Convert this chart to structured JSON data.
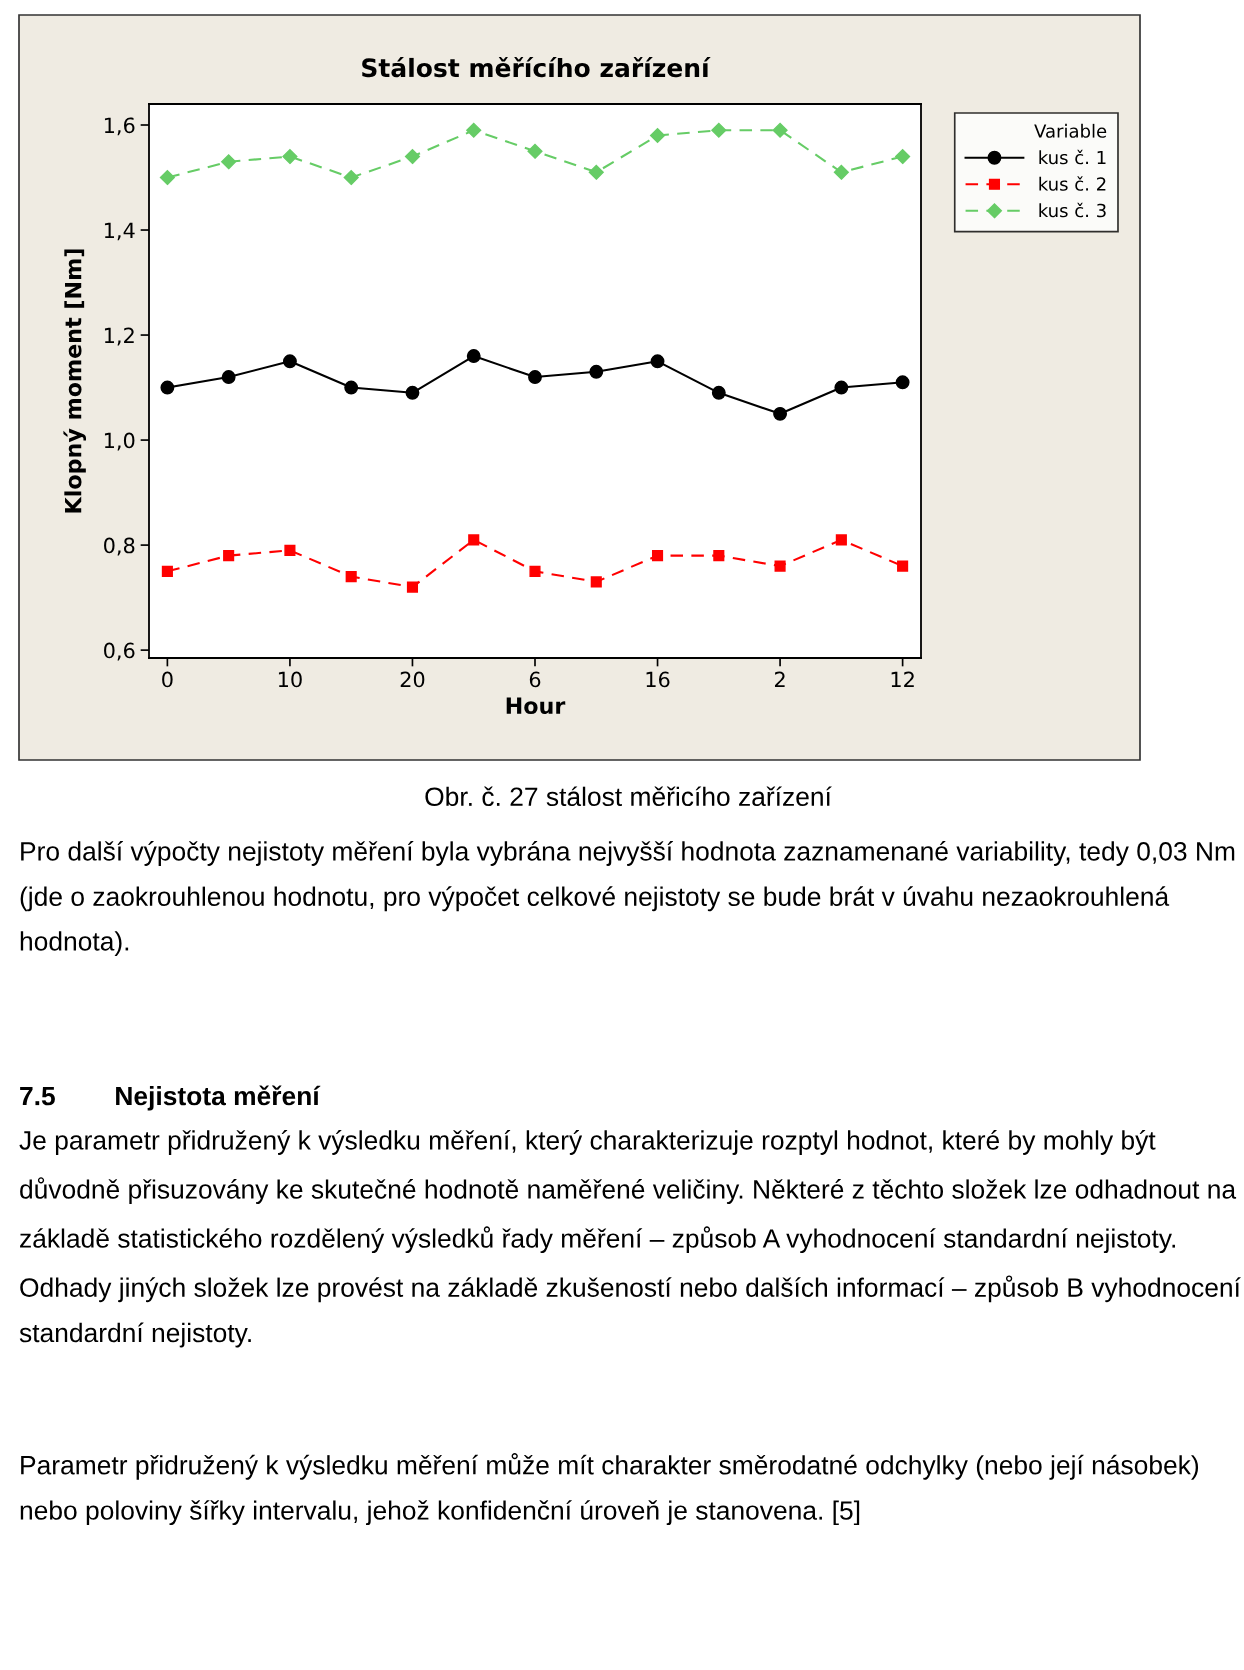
{
  "chart_data": {
    "type": "line",
    "title": "Stálost měřícího zařízení",
    "xlabel": "Hour",
    "ylabel": "Klopný moment [Nm]",
    "legend_title": "Variable",
    "categories": [
      "0",
      null,
      "10",
      null,
      "20",
      null,
      "6",
      null,
      "16",
      null,
      "2",
      null,
      "12"
    ],
    "series": [
      {
        "name": "kus č. 1",
        "color": "#000000",
        "marker": "circle",
        "line_style": "solid",
        "values": [
          1.1,
          1.12,
          1.15,
          1.1,
          1.09,
          1.16,
          1.12,
          1.13,
          1.15,
          1.09,
          1.05,
          1.1,
          1.11
        ]
      },
      {
        "name": "kus č. 2",
        "color": "#ff0000",
        "marker": "square",
        "line_style": "dashed",
        "values": [
          0.75,
          0.78,
          0.79,
          0.74,
          0.72,
          0.81,
          0.75,
          0.73,
          0.78,
          0.78,
          0.76,
          0.81,
          0.76
        ]
      },
      {
        "name": "kus č. 3",
        "color": "#66cc66",
        "marker": "diamond",
        "line_style": "dashed",
        "values": [
          1.5,
          1.53,
          1.54,
          1.5,
          1.54,
          1.59,
          1.55,
          1.51,
          1.58,
          1.59,
          1.59,
          1.51,
          1.54
        ]
      }
    ],
    "ylim": [
      0.585,
      1.64
    ],
    "yticks": [
      {
        "value": 0.6,
        "label": "0,6"
      },
      {
        "value": 0.8,
        "label": "0,8"
      },
      {
        "value": 1.0,
        "label": "1,0"
      },
      {
        "value": 1.2,
        "label": "1,2"
      },
      {
        "value": 1.4,
        "label": "1,4"
      },
      {
        "value": 1.6,
        "label": "1,6"
      }
    ],
    "grid": false,
    "legend": "top right",
    "annotations": [
      "Obr. č. 27 stálost měřicího zařízení",
      "Pro další výpočty nejistoty měření byla vybrána nejvyšší hodnota zaznamenané variability, tedy 0,03 Nm  (jde o zaokrouhlenou hodnotu, pro výpočet celkové nejistoty se bude brát v úvahu nezaokrouhlená hodnota).",
      "7.5        Nejistota měření",
      "Je parametr přidružený k výsledku měření, který charakterizuje rozptyl hodnot, které by mohly být důvodně přisuzovány ke skutečné hodnotě naměřené veličiny. Některé z těchto složek lze odhadnout na základě statistického rozdělený výsledků řady měření – způsob A vyhodnocení standardní nejistoty. Odhady jiných složek lze provést na základě zkušeností nebo dalších informací – způsob B vyhodnocení standardní nejistoty.",
      "Parametr přidružený k výsledku měření může mít charakter směrodatné odchylky (nebo její násobek) nebo poloviny šířky intervalu, jehož konfidenční úroveň je stanovena. [5]"
    ]
  }
}
